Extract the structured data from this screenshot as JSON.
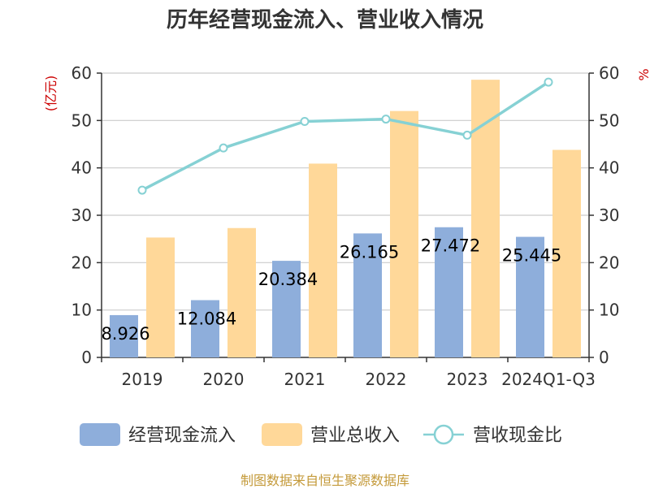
{
  "chart_data": {
    "type": "bar",
    "title": "历年经营现金流入、营业收入情况",
    "source": "制图数据来自恒生聚源数据库",
    "categories": [
      "2019",
      "2020",
      "2021",
      "2022",
      "2023",
      "2024Q1-Q3"
    ],
    "y_left": {
      "unit": "(亿元)",
      "range": [
        0,
        60
      ],
      "ticks": [
        0,
        10,
        20,
        30,
        40,
        50,
        60
      ]
    },
    "y_right": {
      "unit": "%",
      "range": [
        0,
        60
      ],
      "ticks": [
        0,
        10,
        20,
        30,
        40,
        50,
        60
      ]
    },
    "grid": true,
    "legend_position": "bottom",
    "series": [
      {
        "name": "经营现金流入",
        "type": "bar",
        "axis": "left",
        "color": "#8eaedb",
        "values": [
          8.926,
          12.084,
          20.384,
          26.165,
          27.472,
          25.445
        ],
        "labels": [
          "8.926",
          "12.084",
          "20.384",
          "26.165",
          "27.472",
          "25.445"
        ]
      },
      {
        "name": "营业总收入",
        "type": "bar",
        "axis": "left",
        "color": "#ffd899",
        "values": [
          25.3,
          27.3,
          40.9,
          52.0,
          58.6,
          43.8
        ]
      },
      {
        "name": "营收现金比",
        "type": "line",
        "axis": "right",
        "color": "#86d1d4",
        "values": [
          35.3,
          44.2,
          49.8,
          50.3,
          46.9,
          58.1
        ]
      }
    ]
  }
}
